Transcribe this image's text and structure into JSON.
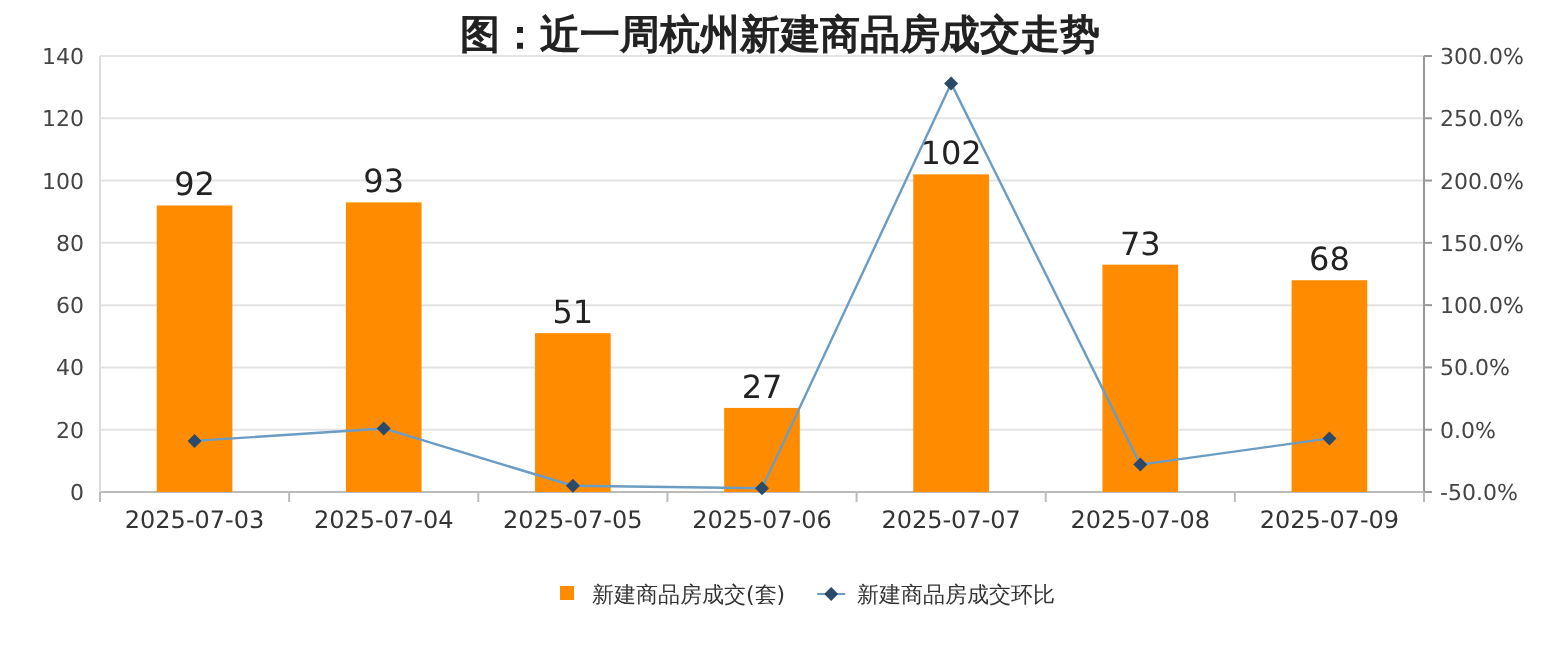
{
  "chart_data": {
    "type": "bar",
    "title": "图：近一周杭州新建商品房成交走势",
    "categories": [
      "2025-07-03",
      "2025-07-04",
      "2025-07-05",
      "2025-07-06",
      "2025-07-07",
      "2025-07-08",
      "2025-07-09"
    ],
    "series": [
      {
        "name": "新建商品房成交(套)",
        "color": "#ff8c00",
        "values": [
          92,
          93,
          51,
          27,
          102,
          73,
          68
        ],
        "value_labels": [
          "92",
          "93",
          "51",
          "27",
          "102",
          "73",
          "68"
        ]
      },
      {
        "name": "新建商品房成交环比",
        "type": "line",
        "axis": "y2",
        "color": "#6a9cc4",
        "values": [
          -9,
          1,
          -45,
          -47,
          278,
          -28,
          -7
        ]
      }
    ],
    "ylim": [
      0,
      140
    ],
    "yticks": [
      0,
      20,
      40,
      60,
      80,
      100,
      120,
      140
    ],
    "y2lim": [
      -50,
      300
    ],
    "y2ticks": [
      {
        "value": -50,
        "label": "-50.0%"
      },
      {
        "value": 0,
        "label": "0.0%"
      },
      {
        "value": 50,
        "label": "50.0%"
      },
      {
        "value": 100,
        "label": "100.0%"
      },
      {
        "value": 150,
        "label": "150.0%"
      },
      {
        "value": 200,
        "label": "200.0%"
      },
      {
        "value": 250,
        "label": "250.0%"
      },
      {
        "value": 300,
        "label": "300.0%"
      }
    ],
    "grid": "y",
    "legend": "bottom",
    "marker": "diamond"
  }
}
